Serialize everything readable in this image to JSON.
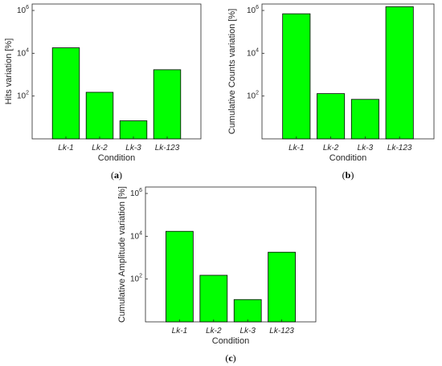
{
  "chart_data": [
    {
      "id": "a",
      "type": "bar",
      "panel_label": "a",
      "categories": [
        "Lk-1",
        "Lk-2",
        "Lk-3",
        "Lk-123"
      ],
      "values": [
        18000,
        150,
        7,
        1700
      ],
      "xlabel": "Condition",
      "ylabel": "Hits variation [%]",
      "yscale": "log",
      "ylim": [
        1,
        2000000
      ],
      "yticks": [
        {
          "v": 100,
          "base": "10",
          "exp": "2"
        },
        {
          "v": 10000,
          "base": "10",
          "exp": "4"
        },
        {
          "v": 1000000,
          "base": "10",
          "exp": "6"
        }
      ],
      "bar_color": "#00ff00",
      "grid": false
    },
    {
      "id": "b",
      "type": "bar",
      "panel_label": "b",
      "categories": [
        "Lk-1",
        "Lk-2",
        "Lk-3",
        "Lk-123"
      ],
      "values": [
        700000,
        130,
        70,
        1500000
      ],
      "xlabel": "Condition",
      "ylabel": "Cumulative Counts variation [%]",
      "yscale": "log",
      "ylim": [
        1,
        2000000
      ],
      "yticks": [
        {
          "v": 100,
          "base": "10",
          "exp": "2"
        },
        {
          "v": 10000,
          "base": "10",
          "exp": "4"
        },
        {
          "v": 1000000,
          "base": "10",
          "exp": "6"
        }
      ],
      "bar_color": "#00ff00",
      "grid": false
    },
    {
      "id": "c",
      "type": "bar",
      "panel_label": "c",
      "categories": [
        "Lk-1",
        "Lk-2",
        "Lk-3",
        "Lk-123"
      ],
      "values": [
        17000,
        150,
        11,
        1800
      ],
      "xlabel": "Condition",
      "ylabel": "Cumulative Amplitude variation [%]",
      "yscale": "log",
      "ylim": [
        1,
        2000000
      ],
      "yticks": [
        {
          "v": 100,
          "base": "10",
          "exp": "2"
        },
        {
          "v": 10000,
          "base": "10",
          "exp": "4"
        },
        {
          "v": 1000000,
          "base": "10",
          "exp": "6"
        }
      ],
      "bar_color": "#00ff00",
      "grid": false
    }
  ]
}
